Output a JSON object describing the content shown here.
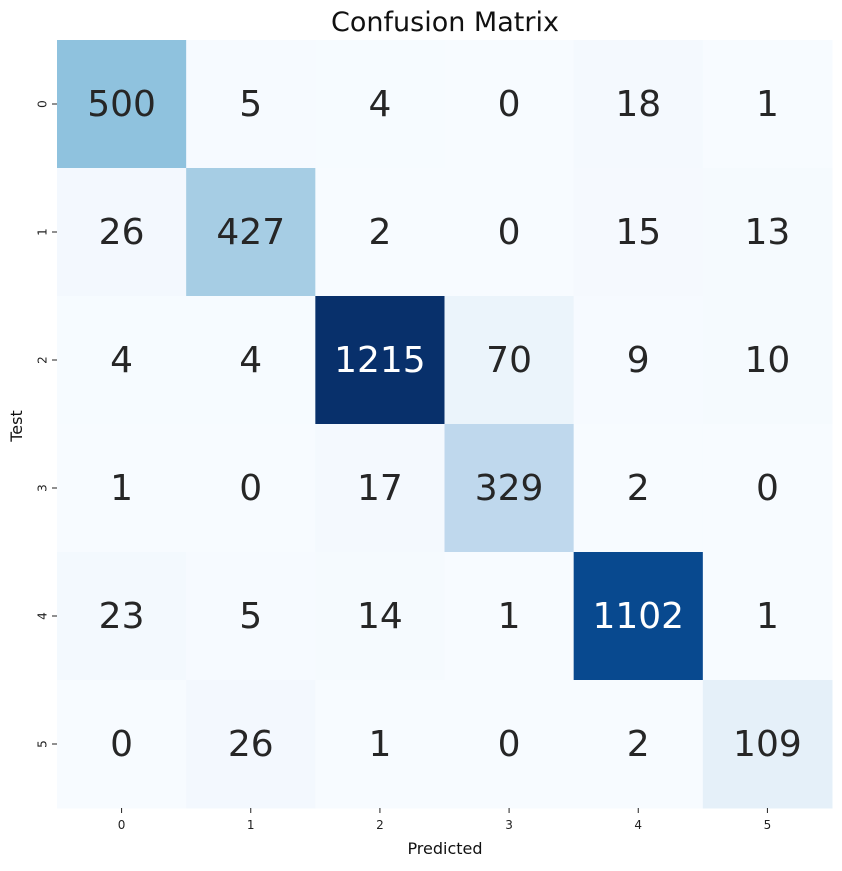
{
  "chart_data": {
    "type": "heatmap",
    "title": "Confusion Matrix",
    "xlabel": "Predicted",
    "ylabel": "Test",
    "x_categories": [
      "0",
      "1",
      "2",
      "3",
      "4",
      "5"
    ],
    "y_categories": [
      "0",
      "1",
      "2",
      "3",
      "4",
      "5"
    ],
    "values": [
      [
        500,
        5,
        4,
        0,
        18,
        1
      ],
      [
        26,
        427,
        2,
        0,
        15,
        13
      ],
      [
        4,
        4,
        1215,
        70,
        9,
        10
      ],
      [
        1,
        0,
        17,
        329,
        2,
        0
      ],
      [
        23,
        5,
        14,
        1,
        1102,
        1
      ],
      [
        0,
        26,
        1,
        0,
        2,
        109
      ]
    ],
    "colormap": "Blues",
    "value_range": [
      0,
      1215
    ],
    "colorbar": false,
    "annotations": true
  }
}
